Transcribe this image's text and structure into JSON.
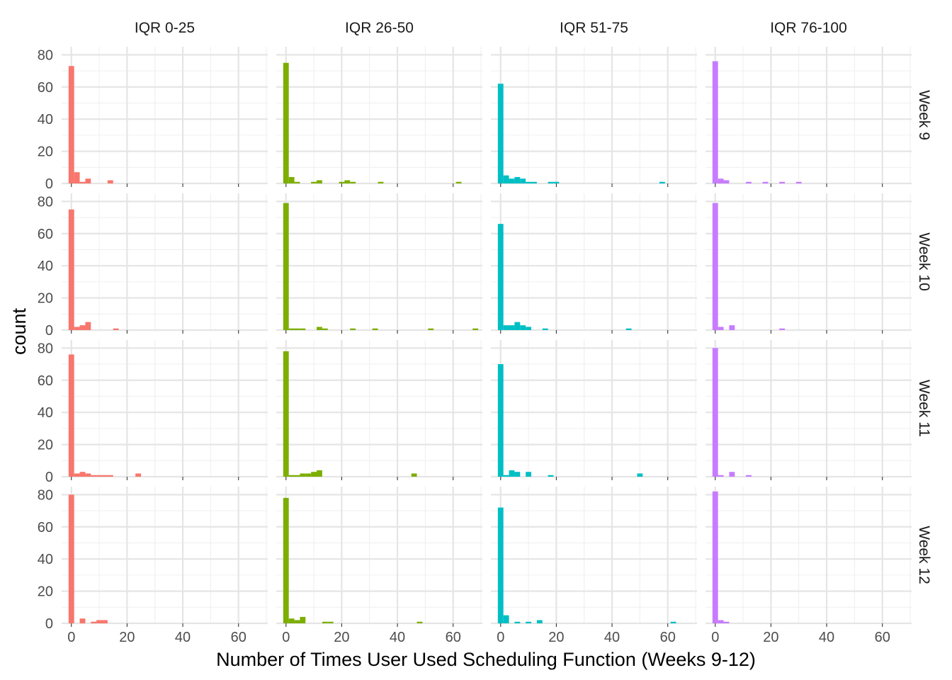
{
  "chart_data": {
    "type": "bar",
    "subtype": "faceted-histogram",
    "xlabel": "Number of Times User Used Scheduling Function (Weeks 9-12)",
    "ylabel": "count",
    "xlim": [
      -3.5,
      70.5
    ],
    "ylim": [
      0,
      85
    ],
    "x_ticks": [
      0,
      20,
      40,
      60
    ],
    "y_ticks": [
      0,
      20,
      40,
      60,
      80
    ],
    "bin_width": 2,
    "grid": true,
    "legend": "none",
    "columns": [
      {
        "label": "IQR 0-25",
        "color": "#F8766D"
      },
      {
        "label": "IQR 26-50",
        "color": "#7CAE00"
      },
      {
        "label": "IQR 51-75",
        "color": "#00BFC4"
      },
      {
        "label": "IQR 76-100",
        "color": "#C77CFF"
      }
    ],
    "rows": [
      "Week 9",
      "Week 10",
      "Week 11",
      "Week 12"
    ],
    "panels": [
      [
        {
          "bins": [
            [
              0,
              73
            ],
            [
              2,
              7
            ],
            [
              4,
              1
            ],
            [
              6,
              3
            ],
            [
              14,
              2
            ]
          ]
        },
        {
          "bins": [
            [
              0,
              75
            ],
            [
              2,
              4
            ],
            [
              4,
              1
            ],
            [
              10,
              1
            ],
            [
              12,
              2
            ],
            [
              20,
              1
            ],
            [
              22,
              2
            ],
            [
              24,
              1
            ],
            [
              34,
              1
            ],
            [
              62,
              1
            ]
          ]
        },
        {
          "bins": [
            [
              0,
              62
            ],
            [
              2,
              5
            ],
            [
              4,
              3
            ],
            [
              6,
              4
            ],
            [
              8,
              3
            ],
            [
              10,
              1
            ],
            [
              12,
              1
            ],
            [
              18,
              1
            ],
            [
              20,
              1
            ],
            [
              58,
              1
            ]
          ]
        },
        {
          "bins": [
            [
              0,
              76
            ],
            [
              2,
              3
            ],
            [
              4,
              2
            ],
            [
              12,
              1
            ],
            [
              18,
              1
            ],
            [
              24,
              1
            ],
            [
              30,
              1
            ]
          ]
        }
      ],
      [
        {
          "bins": [
            [
              0,
              75
            ],
            [
              2,
              2
            ],
            [
              4,
              3
            ],
            [
              6,
              5
            ],
            [
              16,
              1
            ]
          ]
        },
        {
          "bins": [
            [
              0,
              79
            ],
            [
              2,
              1
            ],
            [
              4,
              1
            ],
            [
              6,
              1
            ],
            [
              12,
              2
            ],
            [
              14,
              1
            ],
            [
              24,
              1
            ],
            [
              32,
              1
            ],
            [
              52,
              1
            ],
            [
              68,
              1
            ]
          ]
        },
        {
          "bins": [
            [
              0,
              66
            ],
            [
              2,
              3
            ],
            [
              4,
              3
            ],
            [
              6,
              5
            ],
            [
              8,
              3
            ],
            [
              10,
              2
            ],
            [
              16,
              1
            ],
            [
              46,
              1
            ]
          ]
        },
        {
          "bins": [
            [
              0,
              79
            ],
            [
              2,
              2
            ],
            [
              6,
              3
            ],
            [
              24,
              1
            ]
          ]
        }
      ],
      [
        {
          "bins": [
            [
              0,
              76
            ],
            [
              2,
              2
            ],
            [
              4,
              3
            ],
            [
              6,
              2
            ],
            [
              8,
              1
            ],
            [
              10,
              1
            ],
            [
              12,
              1
            ],
            [
              14,
              1
            ],
            [
              24,
              2
            ]
          ]
        },
        {
          "bins": [
            [
              0,
              78
            ],
            [
              2,
              1
            ],
            [
              4,
              1
            ],
            [
              6,
              2
            ],
            [
              8,
              2
            ],
            [
              10,
              3
            ],
            [
              12,
              4
            ],
            [
              46,
              2
            ]
          ]
        },
        {
          "bins": [
            [
              0,
              70
            ],
            [
              2,
              1
            ],
            [
              4,
              4
            ],
            [
              6,
              3
            ],
            [
              10,
              3
            ],
            [
              18,
              1
            ],
            [
              50,
              2
            ]
          ]
        },
        {
          "bins": [
            [
              0,
              80
            ],
            [
              2,
              1
            ],
            [
              6,
              3
            ],
            [
              12,
              1
            ]
          ]
        }
      ],
      [
        {
          "bins": [
            [
              0,
              80
            ],
            [
              4,
              3
            ],
            [
              8,
              1
            ],
            [
              10,
              2
            ],
            [
              12,
              2
            ]
          ]
        },
        {
          "bins": [
            [
              0,
              78
            ],
            [
              2,
              3
            ],
            [
              4,
              2
            ],
            [
              6,
              4
            ],
            [
              14,
              1
            ],
            [
              16,
              1
            ],
            [
              48,
              1
            ]
          ]
        },
        {
          "bins": [
            [
              0,
              72
            ],
            [
              2,
              5
            ],
            [
              6,
              1
            ],
            [
              10,
              1
            ],
            [
              14,
              2
            ],
            [
              62,
              1
            ]
          ]
        },
        {
          "bins": [
            [
              0,
              82
            ],
            [
              2,
              2
            ],
            [
              4,
              1
            ]
          ]
        }
      ]
    ]
  }
}
